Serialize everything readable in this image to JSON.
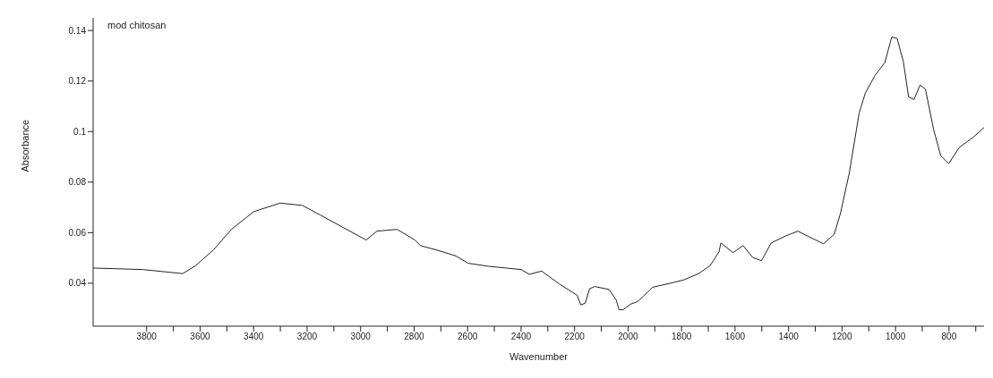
{
  "chart_data": {
    "type": "line",
    "xlabel": "Wavenumber",
    "ylabel": "Absorbance",
    "annotations": [
      "mod chitosan"
    ],
    "legend": false,
    "grid": false,
    "marker": "none",
    "line_style": "solid",
    "xlim": [
      4000,
      669
    ],
    "ylim": [
      0.023,
      0.145
    ],
    "xticks": [
      3800,
      {
        "value": 3700,
        "label": null
      },
      3600,
      {
        "value": 3500,
        "label": null
      },
      3400,
      {
        "value": 3300,
        "label": null
      },
      3200,
      {
        "value": 3100,
        "label": null
      },
      3000,
      {
        "value": 2900,
        "label": null
      },
      2800,
      {
        "value": 2700,
        "label": null
      },
      2600,
      {
        "value": 2500,
        "label": null
      },
      2400,
      {
        "value": 2300,
        "label": null
      },
      2200,
      {
        "value": 2100,
        "label": null
      },
      2000,
      {
        "value": 1900,
        "label": null
      },
      1800,
      {
        "value": 1700,
        "label": null
      },
      1600,
      {
        "value": 1500,
        "label": null
      },
      1400,
      {
        "value": 1300,
        "label": null
      },
      1200,
      {
        "value": 1100,
        "label": null
      },
      1000,
      {
        "value": 900,
        "label": null
      },
      800,
      {
        "value": 700,
        "label": null
      }
    ],
    "yticks": [
      0.04,
      0.06,
      0.08,
      0.1,
      0.12,
      0.14
    ],
    "series": [
      {
        "color": "#222222",
        "x": [
          4000,
          3814,
          3665,
          3616,
          3549,
          3483,
          3400,
          3301,
          3218,
          3151,
          3052,
          2979,
          2939,
          2863,
          2797,
          2777,
          2711,
          2644,
          2598,
          2522,
          2455,
          2399,
          2369,
          2323,
          2257,
          2190,
          2177,
          2160,
          2144,
          2124,
          2071,
          2044,
          2034,
          2018,
          1991,
          1965,
          1942,
          1908,
          1842,
          1792,
          1736,
          1693,
          1660,
          1653,
          1607,
          1570,
          1534,
          1501,
          1465,
          1411,
          1365,
          1318,
          1269,
          1229,
          1206,
          1173,
          1136,
          1113,
          1077,
          1040,
          1014,
          994,
          971,
          951,
          931,
          908,
          888,
          858,
          831,
          801,
          762,
          709,
          669
        ],
        "values": [
          0.046,
          0.0454,
          0.0438,
          0.047,
          0.0533,
          0.0613,
          0.0683,
          0.0717,
          0.0708,
          0.067,
          0.0613,
          0.0571,
          0.0606,
          0.0613,
          0.0571,
          0.0549,
          0.053,
          0.0508,
          0.0479,
          0.0467,
          0.046,
          0.0454,
          0.0435,
          0.0448,
          0.0397,
          0.0352,
          0.0314,
          0.0321,
          0.0378,
          0.0387,
          0.0375,
          0.0333,
          0.0295,
          0.0295,
          0.0317,
          0.0327,
          0.0349,
          0.0384,
          0.04,
          0.0413,
          0.0438,
          0.047,
          0.0524,
          0.0559,
          0.0521,
          0.0549,
          0.0502,
          0.0489,
          0.0559,
          0.0587,
          0.0606,
          0.0581,
          0.0556,
          0.0594,
          0.0676,
          0.0835,
          0.1073,
          0.1152,
          0.1222,
          0.1273,
          0.1375,
          0.1368,
          0.1279,
          0.1137,
          0.1127,
          0.1184,
          0.1168,
          0.101,
          0.0905,
          0.0873,
          0.0937,
          0.0978,
          0.1016
        ]
      }
    ]
  }
}
